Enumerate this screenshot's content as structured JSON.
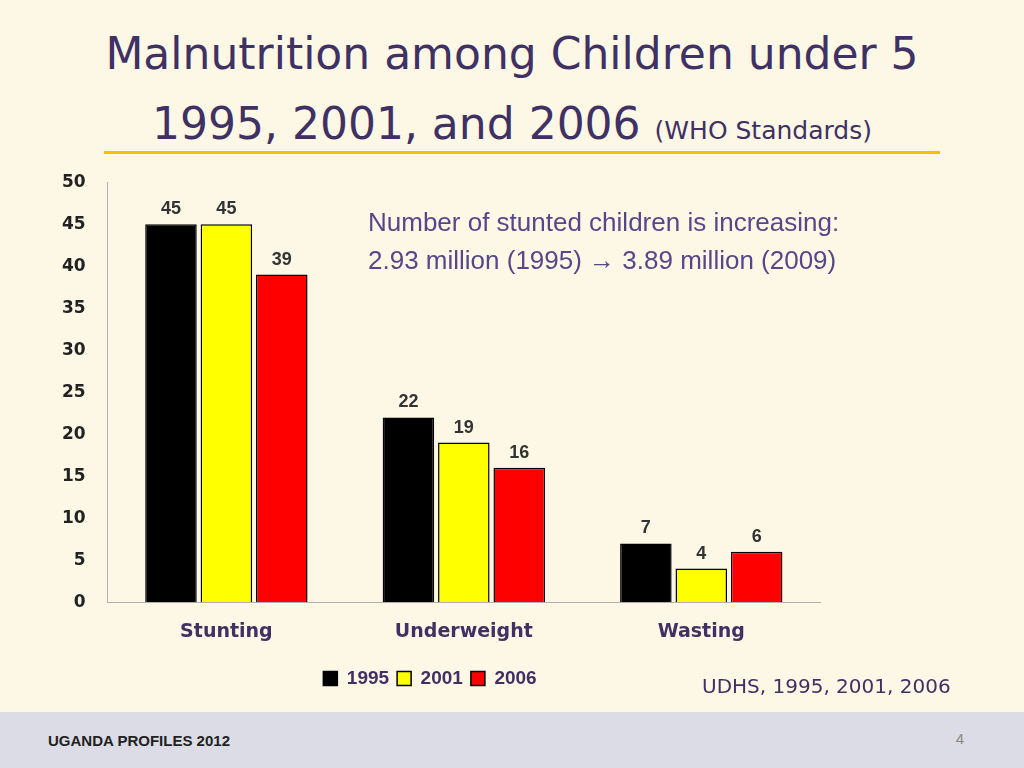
{
  "chart_data": {
    "type": "bar",
    "title": "Malnutrition among Children under 5",
    "subtitle": "1995, 2001, and 2006",
    "title_note": "(WHO Standards)",
    "annotations": [
      "Number of stunted children is increasing:",
      "2.93 million (1995) → 3.89 million (2009)"
    ],
    "source": "UDHS, 1995, 2001, 2006",
    "categories": [
      "Stunting",
      "Underweight",
      "Wasting"
    ],
    "series": [
      {
        "name": "1995",
        "color": "#000000",
        "values": [
          45,
          22,
          7
        ]
      },
      {
        "name": "2001",
        "color": "#ffff00",
        "values": [
          45,
          19,
          4
        ]
      },
      {
        "name": "2006",
        "color": "#ff0000",
        "values": [
          39,
          16,
          6
        ]
      }
    ],
    "ylim": [
      0,
      50
    ],
    "yticks": [
      0,
      5,
      10,
      15,
      20,
      25,
      30,
      35,
      40,
      45,
      50
    ],
    "grid": false,
    "legend": "bottom",
    "data_labels": true
  },
  "footer": {
    "left": "UGANDA PROFILES 2012",
    "page": "4"
  }
}
